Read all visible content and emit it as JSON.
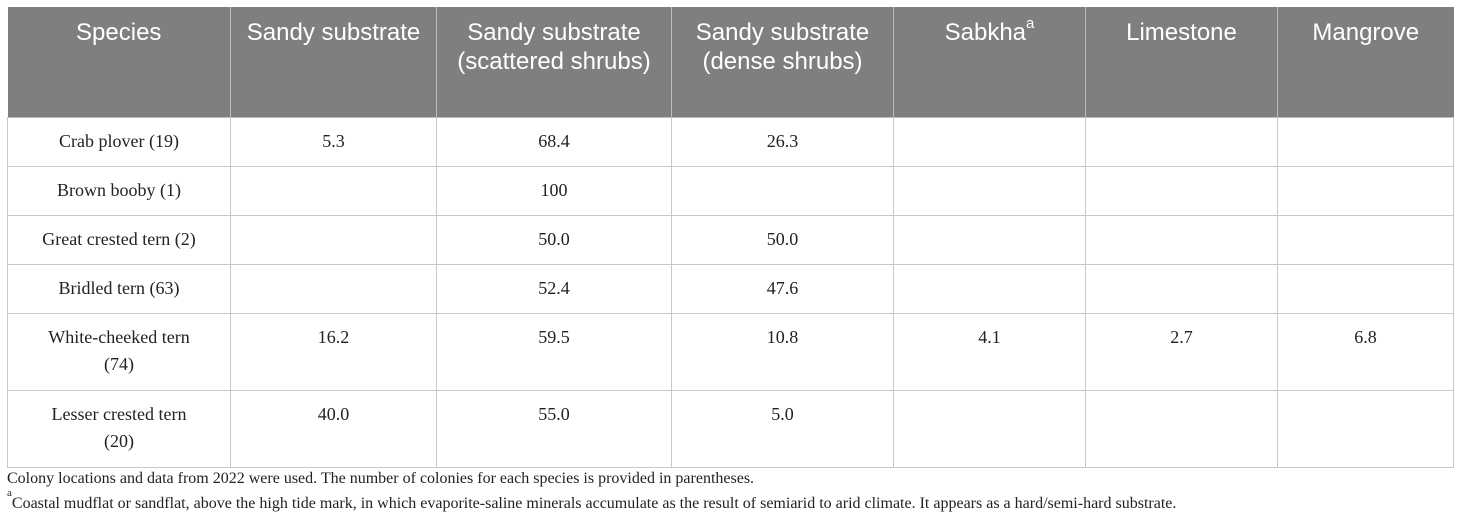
{
  "table": {
    "headers": [
      {
        "text": "Species"
      },
      {
        "text": "Sandy substrate"
      },
      {
        "text": "Sandy substrate (scattered shrubs)"
      },
      {
        "text": "Sandy substrate (dense shrubs)"
      },
      {
        "text": "Sabkha",
        "sup": "a"
      },
      {
        "text": "Limestone"
      },
      {
        "text": "Mangrove"
      }
    ],
    "rows": [
      [
        "Crab plover (19)",
        "5.3",
        "68.4",
        "26.3",
        "",
        "",
        ""
      ],
      [
        "Brown booby (1)",
        "",
        "100",
        "",
        "",
        "",
        ""
      ],
      [
        "Great crested tern (2)",
        "",
        "50.0",
        "50.0",
        "",
        "",
        ""
      ],
      [
        "Bridled tern (63)",
        "",
        "52.4",
        "47.6",
        "",
        "",
        ""
      ],
      [
        "White-cheeked tern (74)",
        "16.2",
        "59.5",
        "10.8",
        "4.1",
        "2.7",
        "6.8"
      ],
      [
        "Lesser crested tern (20)",
        "40.0",
        "55.0",
        "5.0",
        "",
        "",
        ""
      ]
    ]
  },
  "notes": {
    "line1": "Colony locations and data from 2022 were used. The number of colonies for each species is provided in parentheses.",
    "line2_sup": "a",
    "line2": "Coastal mudflat or sandflat, above the high tide mark, in which evaporite-saline minerals accumulate as the result of semiarid to arid climate. It appears as a hard/semi-hard substrate."
  },
  "colors": {
    "header_bg": "#7f7f7f",
    "header_text": "#ffffff",
    "grid": "#c8c8c8"
  }
}
